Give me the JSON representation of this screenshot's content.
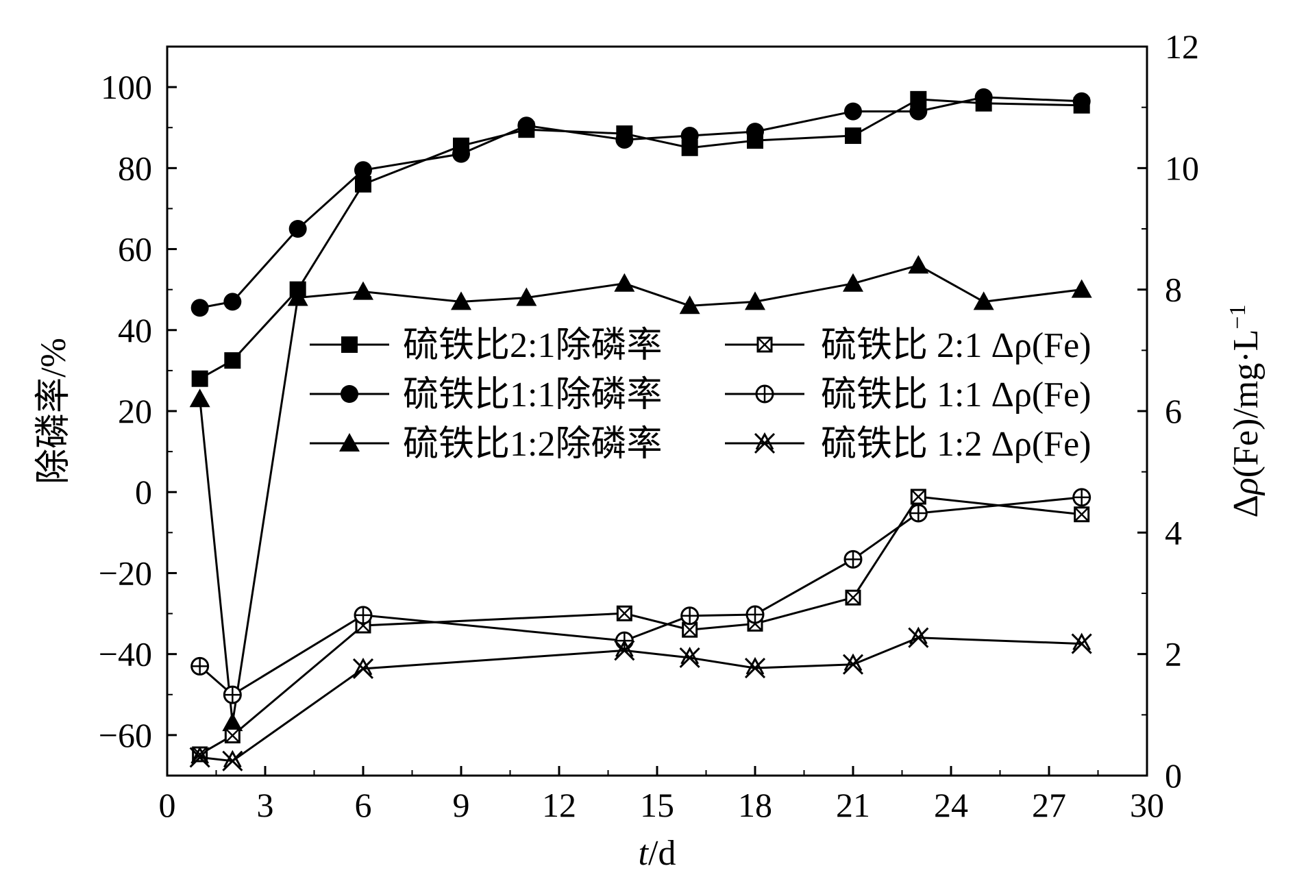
{
  "chart_data": {
    "type": "line",
    "xlabel": "t/d",
    "ylabel_left": "除磷率/%",
    "ylabel_right": "Δρ(Fe)/mg·L⁻¹",
    "xlim": [
      0,
      30
    ],
    "ylim_left": [
      -70,
      110
    ],
    "ylim_right": [
      0,
      12
    ],
    "x_ticks": [
      0,
      3,
      6,
      9,
      12,
      15,
      18,
      21,
      24,
      27,
      30
    ],
    "y_left_ticks": [
      100,
      80,
      60,
      40,
      20,
      0,
      -20,
      -40,
      -60
    ],
    "y_left_tick_labels": [
      "100",
      "80",
      "60",
      "40",
      "20",
      "0",
      "−20",
      "−40",
      "−60"
    ],
    "y_right_ticks": [
      0,
      2,
      4,
      6,
      8,
      10,
      12
    ],
    "grid": false,
    "legend_position": "center",
    "series": [
      {
        "name": "硫铁比2:1除磷率",
        "axis": "left",
        "marker": "square-filled",
        "x": [
          1,
          2,
          4,
          6,
          9,
          11,
          14,
          16,
          18,
          21,
          23,
          25,
          28
        ],
        "y": [
          28,
          32.5,
          50,
          76,
          85.5,
          89.5,
          88.5,
          85,
          86.8,
          88,
          97,
          96,
          95.5
        ]
      },
      {
        "name": "硫铁比1:1除磷率",
        "axis": "left",
        "marker": "circle-filled",
        "x": [
          1,
          2,
          4,
          6,
          9,
          11,
          14,
          16,
          18,
          21,
          23,
          25,
          28
        ],
        "y": [
          45.5,
          47,
          65,
          79.5,
          83.5,
          90.5,
          87,
          88,
          89,
          94,
          94,
          97.5,
          96.5
        ]
      },
      {
        "name": "硫铁比1:2除磷率",
        "axis": "left",
        "marker": "triangle-filled",
        "x": [
          1,
          2,
          4,
          6,
          9,
          11,
          14,
          16,
          18,
          21,
          23,
          25,
          28
        ],
        "y": [
          23,
          -57,
          48,
          49.5,
          47,
          48,
          51.5,
          46,
          47,
          51.5,
          56,
          47,
          50
        ]
      },
      {
        "name": "硫铁比 2:1 Δρ(Fe)",
        "axis": "right",
        "marker": "square-crossed",
        "x": [
          1,
          2,
          6,
          14,
          16,
          18,
          21,
          23,
          28
        ],
        "y": [
          0.35,
          0.66,
          2.47,
          2.67,
          2.4,
          2.5,
          2.93,
          4.59,
          4.3
        ]
      },
      {
        "name": "硫铁比 1:1 Δρ(Fe)",
        "axis": "right",
        "marker": "circle-plus",
        "x": [
          1,
          2,
          6,
          14,
          16,
          18,
          21,
          23,
          28
        ],
        "y": [
          1.8,
          1.33,
          2.64,
          2.22,
          2.63,
          2.65,
          3.56,
          4.32,
          4.58
        ]
      },
      {
        "name": "硫铁比 1:2 Δρ(Fe)",
        "axis": "right",
        "marker": "star-x",
        "x": [
          1,
          2,
          6,
          14,
          16,
          18,
          21,
          23,
          28
        ],
        "y": [
          0.3,
          0.24,
          1.76,
          2.06,
          1.94,
          1.77,
          1.83,
          2.27,
          2.17
        ]
      }
    ]
  }
}
